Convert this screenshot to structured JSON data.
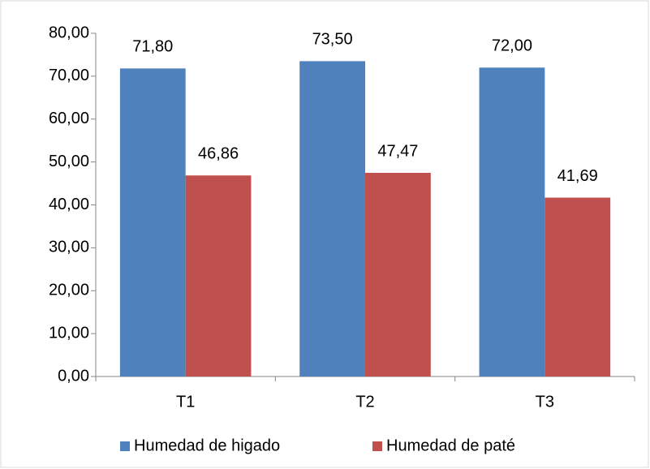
{
  "chart_data": {
    "type": "bar",
    "categories": [
      "T1",
      "T2",
      "T3"
    ],
    "series": [
      {
        "name": "Humedad de higado",
        "color": "#4f81bd",
        "values": [
          71.8,
          73.5,
          72.0
        ],
        "value_labels": [
          "71,80",
          "73,50",
          "72,00"
        ]
      },
      {
        "name": "Humedad de paté",
        "color": "#c0504d",
        "values": [
          46.86,
          47.47,
          41.69
        ],
        "value_labels": [
          "46,86",
          "47,47",
          "41,69"
        ]
      }
    ],
    "ylim": [
      0,
      80
    ],
    "yticks": [
      {
        "value": 0,
        "label": "0,00"
      },
      {
        "value": 10,
        "label": "10,00"
      },
      {
        "value": 20,
        "label": "20,00"
      },
      {
        "value": 30,
        "label": "30,00"
      },
      {
        "value": 40,
        "label": "40,00"
      },
      {
        "value": 50,
        "label": "50,00"
      },
      {
        "value": 60,
        "label": "60,00"
      },
      {
        "value": 70,
        "label": "70,00"
      },
      {
        "value": 80,
        "label": "80,00"
      }
    ],
    "legend": "bottom",
    "grid": false
  }
}
